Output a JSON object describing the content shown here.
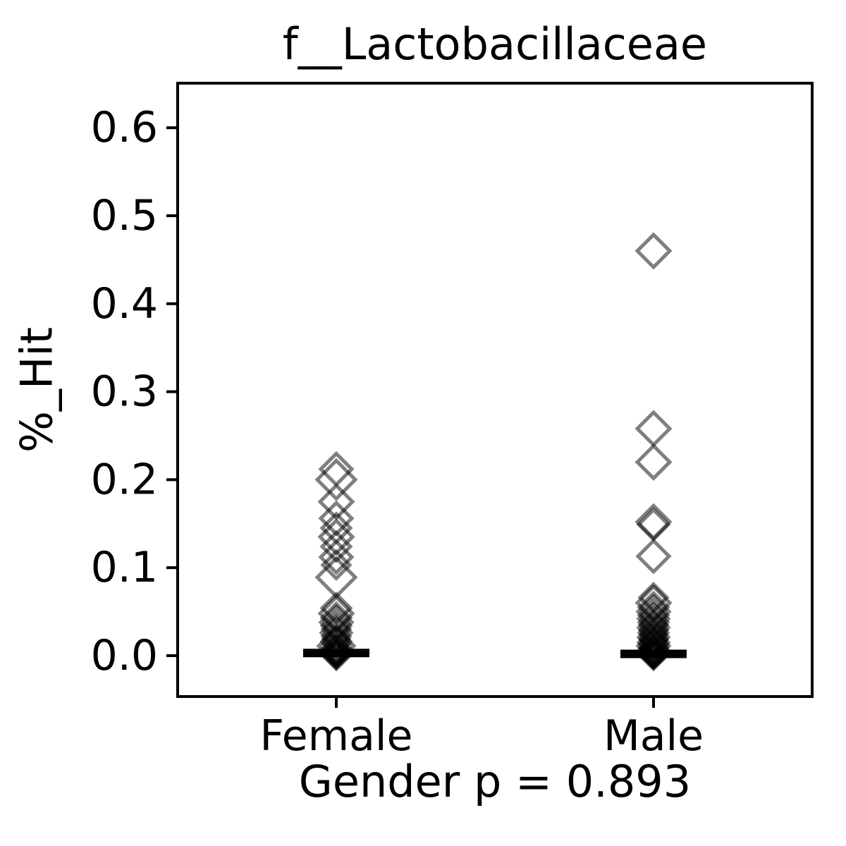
{
  "chart_data": {
    "type": "scatter",
    "title": "f__Lactobacillaceae",
    "ylabel": "%_Hit",
    "xlabel": "Gender p = 0.893",
    "categories": [
      "Female",
      "Male"
    ],
    "yticks": [
      0.0,
      0.1,
      0.2,
      0.3,
      0.4,
      0.5,
      0.6
    ],
    "ylim": [
      -0.047,
      0.651
    ],
    "grid": false,
    "legend": "none",
    "marker": "open-diamond",
    "marker_color": "#000000",
    "marker_opacity": 0.5,
    "median_line_color": "#000000",
    "series": [
      {
        "name": "Female",
        "median": 0.003,
        "points": [
          [
            0.212,
            44
          ],
          [
            0.2,
            54
          ],
          [
            0.175,
            46
          ],
          [
            0.156,
            44
          ],
          [
            0.145,
            40
          ],
          [
            0.135,
            46
          ],
          [
            0.124,
            40
          ],
          [
            0.112,
            44
          ],
          [
            0.103,
            38
          ],
          [
            0.089,
            54
          ],
          [
            0.054,
            40
          ],
          [
            0.048,
            46
          ],
          [
            0.043,
            40
          ],
          [
            0.038,
            44
          ],
          [
            0.034,
            40
          ],
          [
            0.03,
            38
          ],
          [
            0.026,
            42
          ],
          [
            0.022,
            38
          ],
          [
            0.019,
            36
          ],
          [
            0.016,
            40
          ],
          [
            0.013,
            36
          ],
          [
            0.011,
            50
          ],
          [
            0.009,
            38
          ],
          [
            0.007,
            34
          ],
          [
            0.005,
            42
          ],
          [
            0.004,
            34
          ],
          [
            0.003,
            30
          ],
          [
            0.002,
            40
          ],
          [
            0.001,
            34
          ],
          [
            0.0,
            38
          ],
          [
            -0.001,
            30
          ]
        ]
      },
      {
        "name": "Male",
        "median": 0.002,
        "points": [
          [
            0.46,
            46
          ],
          [
            0.258,
            46
          ],
          [
            0.22,
            46
          ],
          [
            0.152,
            46
          ],
          [
            0.149,
            42
          ],
          [
            0.113,
            44
          ],
          [
            0.066,
            38
          ],
          [
            0.06,
            46
          ],
          [
            0.055,
            40
          ],
          [
            0.05,
            44
          ],
          [
            0.046,
            40
          ],
          [
            0.042,
            42
          ],
          [
            0.038,
            40
          ],
          [
            0.035,
            38
          ],
          [
            0.032,
            42
          ],
          [
            0.029,
            38
          ],
          [
            0.026,
            40
          ],
          [
            0.024,
            36
          ],
          [
            0.021,
            42
          ],
          [
            0.019,
            38
          ],
          [
            0.017,
            34
          ],
          [
            0.015,
            42
          ],
          [
            0.013,
            38
          ],
          [
            0.011,
            44
          ],
          [
            0.009,
            38
          ],
          [
            0.008,
            34
          ],
          [
            0.006,
            42
          ],
          [
            0.005,
            36
          ],
          [
            0.004,
            32
          ],
          [
            0.003,
            42
          ],
          [
            0.002,
            36
          ],
          [
            0.001,
            32
          ],
          [
            0.0,
            38
          ],
          [
            -0.001,
            32
          ],
          [
            -0.002,
            28
          ]
        ]
      }
    ]
  }
}
